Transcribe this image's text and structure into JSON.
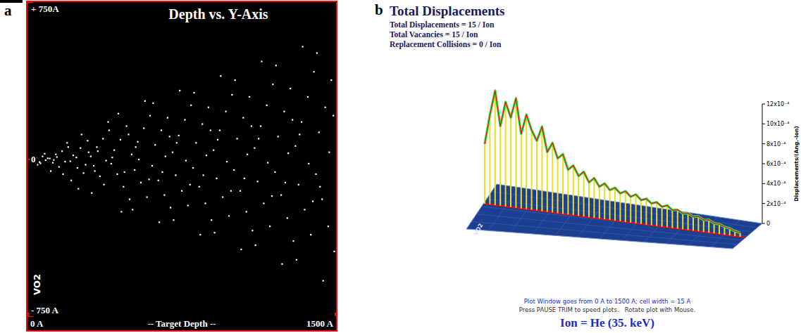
{
  "chart_data": [
    {
      "panel": "a",
      "type": "scatter",
      "title": "Depth vs. Y-Axis",
      "x_label": "-- Target Depth --",
      "target": "VO2",
      "color": "#ffffff",
      "marker": "square",
      "xlim": [
        0,
        1500
      ],
      "ylim": [
        -750,
        750
      ],
      "xticks": [
        {
          "value": 0,
          "label": "0 A"
        },
        {
          "value": 1500,
          "label": "1500 A"
        }
      ],
      "yticks": [
        {
          "value": 750,
          "label": "+ 750A"
        },
        0,
        {
          "value": -750,
          "label": "- 750 A"
        }
      ],
      "x": [
        10,
        25,
        40,
        55,
        70,
        85,
        30,
        60,
        95,
        15,
        45,
        80,
        105,
        120,
        135,
        150,
        165,
        180,
        195,
        110,
        140,
        170,
        190,
        125,
        205,
        220,
        240,
        255,
        270,
        290,
        210,
        235,
        260,
        280,
        295,
        245,
        305,
        320,
        335,
        350,
        365,
        380,
        395,
        310,
        340,
        370,
        390,
        325,
        405,
        420,
        435,
        450,
        465,
        480,
        495,
        410,
        440,
        470,
        490,
        455,
        505,
        520,
        535,
        550,
        565,
        580,
        595,
        510,
        540,
        570,
        590,
        525,
        605,
        620,
        635,
        650,
        665,
        680,
        695,
        610,
        640,
        670,
        690,
        655,
        705,
        720,
        735,
        750,
        765,
        780,
        795,
        710,
        740,
        770,
        790,
        725,
        805,
        820,
        835,
        850,
        865,
        880,
        895,
        810,
        840,
        870,
        890,
        855,
        905,
        920,
        935,
        950,
        965,
        980,
        995,
        910,
        940,
        970,
        990,
        925,
        1005,
        1020,
        1035,
        1050,
        1065,
        1080,
        1095,
        1010,
        1040,
        1070,
        1090,
        1055,
        1105,
        1120,
        1135,
        1150,
        1165,
        1180,
        1195,
        1110,
        1140,
        1170,
        1190,
        1125,
        1205,
        1220,
        1235,
        1250,
        1265,
        1280,
        1295,
        1210,
        1240,
        1270,
        1290,
        1255,
        1305,
        1320,
        1335,
        1350,
        1365,
        1380,
        1395,
        1310,
        1340,
        1370,
        1390,
        1325,
        1405,
        1420,
        1435,
        1450,
        1465,
        1480,
        1495,
        1410,
        1440,
        1470,
        1490,
        1425
      ],
      "values": [
        2,
        -5,
        8,
        -12,
        15,
        -3,
        20,
        -18,
        6,
        -1,
        -25,
        28,
        5,
        -15,
        25,
        -35,
        40,
        -10,
        60,
        -55,
        12,
        -70,
        80,
        -2,
        -8,
        20,
        -40,
        55,
        -65,
        90,
        -100,
        10,
        120,
        -25,
        35,
        -140,
        15,
        -30,
        60,
        -80,
        100,
        -5,
        140,
        -160,
        40,
        -120,
        180,
        -55,
        -20,
        45,
        -70,
        95,
        -130,
        160,
        -190,
        10,
        220,
        -60,
        120,
        -250,
        25,
        -50,
        85,
        -110,
        150,
        -180,
        210,
        -240,
        0,
        280,
        -95,
        60,
        -30,
        70,
        -100,
        140,
        -170,
        200,
        -230,
        270,
        -300,
        15,
        110,
        -60,
        35,
        -75,
        115,
        -150,
        190,
        -220,
        260,
        -290,
        330,
        -5,
        -120,
        80,
        -40,
        80,
        -130,
        170,
        -210,
        250,
        -290,
        320,
        -360,
        20,
        140,
        -75,
        45,
        -90,
        140,
        -180,
        230,
        -270,
        310,
        -350,
        400,
        -10,
        -150,
        95,
        -50,
        100,
        -150,
        200,
        -250,
        300,
        -340,
        380,
        -430,
        25,
        160,
        -90,
        55,
        -105,
        160,
        -210,
        260,
        -320,
        360,
        -410,
        470,
        -15,
        -175,
        100,
        -60,
        110,
        -170,
        230,
        -280,
        340,
        -390,
        450,
        -500,
        30,
        190,
        -110,
        65,
        -120,
        180,
        -240,
        300,
        -360,
        420,
        -480,
        540,
        -20,
        -200,
        120,
        -70,
        130,
        -190,
        250,
        -320,
        380,
        -440,
        510,
        -580,
        35,
        210,
        -130
      ]
    },
    {
      "panel": "b",
      "type": "line",
      "title": "Total Displacements",
      "stats": [
        "Total Displacements = 15 / Ion",
        "Total Vacancies = 15 / Ion",
        "Replacement Collisions = 0 / Ion"
      ],
      "y_label": "Displacements/(Ang.-Ion)",
      "target": "VO2",
      "notes": [
        "Plot Window goes from 0 A to 1500 A; cell width = 15 A",
        "Press PAUSE TRIM to speed plots.   Rotate plot with Mouse."
      ],
      "ion": "Ion = He (35. keV)",
      "color": "#ff0000",
      "tick_labels": "y",
      "xlim": [
        0,
        1500
      ],
      "ylim": [
        0,
        0.0012
      ],
      "yticks": [
        0,
        {
          "value": 0.0002,
          "label": "2x10⁻⁴"
        },
        {
          "value": 0.0004,
          "label": "4x10⁻⁴"
        },
        {
          "value": 0.0006,
          "label": "6x10⁻⁴"
        },
        {
          "value": 0.0008,
          "label": "8x10⁻⁴"
        },
        {
          "value": 0.001,
          "label": "10x10⁻⁴"
        },
        {
          "value": 0.0012,
          "label": "12x10⁻⁴"
        }
      ],
      "x": [
        0,
        30,
        60,
        90,
        120,
        150,
        180,
        210,
        240,
        270,
        300,
        330,
        360,
        390,
        420,
        450,
        480,
        510,
        540,
        570,
        600,
        630,
        660,
        690,
        720,
        750,
        780,
        810,
        840,
        870,
        900,
        930,
        960,
        990,
        1020,
        1050,
        1080,
        1110,
        1140,
        1170,
        1200,
        1230,
        1260,
        1290,
        1320,
        1350,
        1380,
        1410,
        1440,
        1470
      ],
      "values": [
        0.0006,
        0.0009,
        0.00115,
        0.0008,
        0.00105,
        0.0009,
        0.0011,
        0.00075,
        0.00095,
        0.0008,
        0.0007,
        0.00085,
        0.0006,
        0.0007,
        0.00055,
        0.0006,
        0.00045,
        0.0005,
        0.0004,
        0.00045,
        0.00035,
        0.0004,
        0.00032,
        0.00036,
        0.0003,
        0.00033,
        0.00028,
        0.00031,
        0.00026,
        0.00029,
        0.00024,
        0.00026,
        0.00022,
        0.00024,
        0.0002,
        0.00022,
        0.00018,
        0.00019,
        0.00016,
        0.00017,
        0.00014,
        0.00015,
        0.00012,
        0.00013,
        0.0001,
        0.0001,
        8e-05,
        7e-05,
        5e-05,
        4e-05
      ]
    }
  ]
}
